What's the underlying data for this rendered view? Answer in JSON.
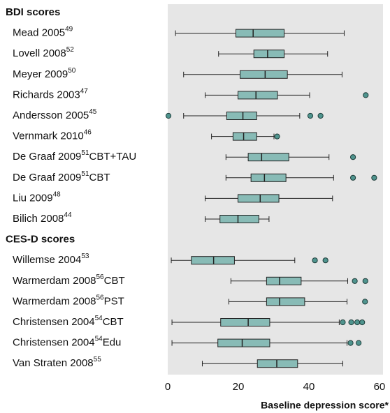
{
  "chart_data": {
    "type": "box",
    "xlabel": "Baseline depression score*",
    "xlim": [
      0,
      61
    ],
    "xticks": [
      0,
      20,
      40,
      60
    ],
    "box_color": "#88bbb6",
    "outlier_color": "#4f948e",
    "background": "#e6e6e6",
    "groups": [
      {
        "title": "BDI scores",
        "rows": [
          {
            "name": "Mead 2005",
            "ref": "49",
            "min": 2.2,
            "q1": 19.3,
            "median": 24.2,
            "q3": 33,
            "max": 50,
            "outliers": []
          },
          {
            "name": "Lovell 2008",
            "ref": "52",
            "min": 14.4,
            "q1": 24.4,
            "median": 28.3,
            "q3": 33,
            "max": 45.3,
            "outliers": []
          },
          {
            "name": "Meyer 2009",
            "ref": "50",
            "min": 4.5,
            "q1": 20.5,
            "median": 27.6,
            "q3": 33.9,
            "max": 49.4,
            "outliers": []
          },
          {
            "name": "Richards 2003",
            "ref": "47",
            "min": 10.6,
            "q1": 19.9,
            "median": 25,
            "q3": 31.1,
            "max": 40.2,
            "outliers": [
              56.1
            ]
          },
          {
            "name": "Andersson 2005",
            "ref": "45",
            "min": 4.5,
            "q1": 16.7,
            "median": 21.3,
            "q3": 25.2,
            "max": 37.4,
            "outliers": [
              0.2,
              40.4,
              43.3
            ]
          },
          {
            "name": "Vernmark 2010",
            "ref": "46",
            "min": 12.4,
            "q1": 18.5,
            "median": 21.5,
            "q3": 25.2,
            "max": 30.1,
            "outliers": [
              31
            ]
          },
          {
            "name": "De Graaf 2009",
            "ref": "51",
            "suffix": "CBT+TAU",
            "min": 16.5,
            "q1": 22.8,
            "median": 26.6,
            "q3": 34.3,
            "max": 45.7,
            "outliers": [
              52.5
            ]
          },
          {
            "name": "De Graaf 2009",
            "ref": "51",
            "suffix": "CBT",
            "min": 16.5,
            "q1": 23.6,
            "median": 27.4,
            "q3": 33.5,
            "max": 47,
            "outliers": [
              52.5,
              58.5
            ]
          },
          {
            "name": "Liu 2009",
            "ref": "48",
            "min": 10.6,
            "q1": 19.9,
            "median": 26.2,
            "q3": 31.5,
            "max": 46.7,
            "outliers": []
          },
          {
            "name": "Bilich 2008",
            "ref": "44",
            "min": 10.6,
            "q1": 14.8,
            "median": 19.9,
            "q3": 25.8,
            "max": 28.7,
            "outliers": []
          }
        ]
      },
      {
        "title": "CES-D scores",
        "rows": [
          {
            "name": "Willemse 2004",
            "ref": "53",
            "min": 1,
            "q1": 6.7,
            "median": 13,
            "q3": 18.9,
            "max": 36,
            "outliers": [
              41.7,
              44.7
            ]
          },
          {
            "name": "Warmerdam 2008",
            "ref": "56",
            "suffix": "CBT",
            "min": 17.9,
            "q1": 28,
            "median": 31.7,
            "q3": 37.8,
            "max": 51,
            "outliers": [
              53,
              56
            ]
          },
          {
            "name": "Warmerdam 2008",
            "ref": "56",
            "suffix": "PST",
            "min": 17.3,
            "q1": 28,
            "median": 31.7,
            "q3": 38.8,
            "max": 50.8,
            "outliers": [
              55.9
            ]
          },
          {
            "name": "Christensen 2004",
            "ref": "54",
            "suffix": "CBT",
            "min": 1.2,
            "q1": 15,
            "median": 22.8,
            "q3": 28.9,
            "max": 48.6,
            "outliers": [
              49.6,
              52,
              53.7,
              55.1
            ]
          },
          {
            "name": "Christensen 2004",
            "ref": "54",
            "suffix": "Edu",
            "min": 1.2,
            "q1": 14.2,
            "median": 21.1,
            "q3": 28.9,
            "max": 50.8,
            "outliers": [
              51.8,
              54.1
            ]
          },
          {
            "name": "Van Straten 2008",
            "ref": "55",
            "min": 9.8,
            "q1": 25.4,
            "median": 30.9,
            "q3": 36.8,
            "max": 49.6,
            "outliers": []
          }
        ]
      }
    ]
  }
}
